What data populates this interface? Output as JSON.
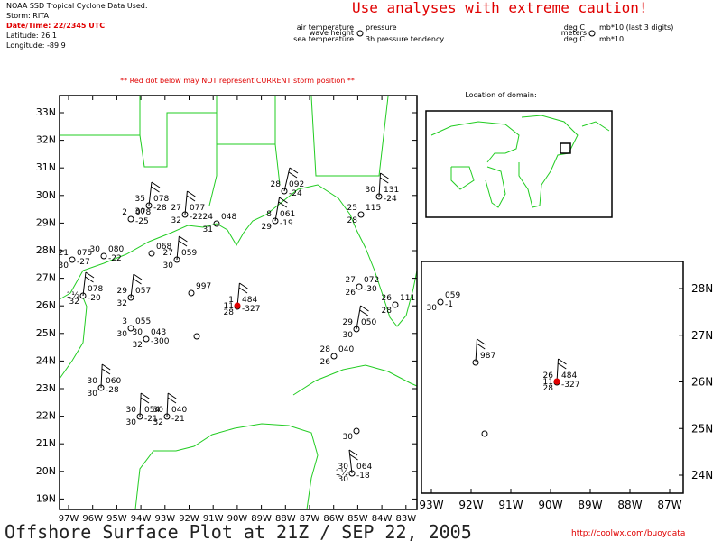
{
  "header": {
    "lines": [
      "NOAA SSD Tropical Cyclone Data Used:",
      "Storm: RITA",
      "Date/Time: 22/2345 UTC",
      "Latitude: 26.1",
      "Longitude: -89.9"
    ]
  },
  "caution": "Use analyses with extreme caution!",
  "legend": {
    "air_temperature": "air temperature",
    "pressure": "pressure",
    "wave_height": "wave height",
    "sea_temperature": "sea temperature",
    "pressure_tendency": "3h pressure tendency",
    "units_air": "deg C",
    "units_pressure": "mb*10 (last 3 digits)",
    "units_wave": "meters",
    "units_sea": "deg C",
    "units_tendency": "mb*10"
  },
  "note": "** Red dot below may NOT represent CURRENT storm position **",
  "main_map": {
    "lat_labels": [
      "33N",
      "32N",
      "31N",
      "30N",
      "29N",
      "28N",
      "27N",
      "26N",
      "25N",
      "24N",
      "23N",
      "22N",
      "21N",
      "20N",
      "19N"
    ],
    "lon_labels": [
      "97W",
      "96W",
      "95W",
      "94W",
      "93W",
      "92W",
      "91W",
      "90W",
      "89W",
      "88W",
      "87W",
      "86W",
      "85W",
      "84W",
      "83W"
    ],
    "stations": [
      {
        "air": "35",
        "press": "078",
        "sea": "30",
        "tend": "-28"
      },
      {
        "air": "2",
        "press": "078",
        "tend": "-25"
      },
      {
        "air": "27",
        "press": "077",
        "sea": "32",
        "tend": "-22"
      },
      {
        "air": "24",
        "press": "048",
        "sea": "31"
      },
      {
        "air": "28",
        "press": "092",
        "tend": "-24"
      },
      {
        "air": "8",
        "press": "061",
        "sea": "29",
        "tend": "-19"
      },
      {
        "air": "30",
        "press": "131",
        "tend": "-24"
      },
      {
        "air": "25",
        "press": "115",
        "sea": "28"
      },
      {
        "air": "30",
        "press": "080",
        "tend": "-22"
      },
      {
        "air": "21",
        "press": "075",
        "sea": "30",
        "tend": "-27"
      },
      {
        "press": "068"
      },
      {
        "air": "27",
        "press": "059",
        "sea": "30"
      },
      {
        "press": "078",
        "wave": "1½",
        "sea": "32",
        "tend": "-20"
      },
      {
        "air": "29",
        "press": "057",
        "sea": "32"
      },
      {
        "press": "997"
      },
      {
        "air": "3",
        "press": "055",
        "sea": "30"
      },
      {
        "air": "30",
        "press": "043",
        "sea": "32",
        "tend": "-300"
      },
      {
        "air": "1",
        "press": "484",
        "wave": "11",
        "sea": "28",
        "tend": "-327"
      },
      {
        "air": "29",
        "press": "050",
        "sea": "30"
      },
      {
        "air": "28",
        "press": "040",
        "sea": "26"
      },
      {
        "air": "27",
        "press": "072",
        "sea": "26",
        "tend": "-30"
      },
      {
        "air": "26",
        "press": "111",
        "sea": "28"
      },
      {
        "air": "30",
        "press": "060",
        "sea": "30",
        "tend": "-28"
      },
      {
        "air": "30",
        "press": "054",
        "sea": "30",
        "tend": "-21"
      },
      {
        "air": "30",
        "press": "040",
        "sea": "32",
        "tend": "-21"
      },
      {
        "sea": "30"
      },
      {
        "air": "30",
        "press": "064",
        "wave": "1½",
        "sea": "30",
        "tend": "-18"
      }
    ]
  },
  "inset_title": "Location of domain:",
  "zoom_map": {
    "lat_labels": [
      "28N",
      "27N",
      "26N",
      "25N",
      "24N"
    ],
    "lon_labels": [
      "93W",
      "92W",
      "91W",
      "90W",
      "89W",
      "88W",
      "87W"
    ],
    "stations": [
      {
        "sea": "30",
        "press": "059",
        "tend": "-1"
      },
      {
        "press": "987"
      },
      {
        "air": "26",
        "press": "484",
        "wave": "11",
        "sea": "28",
        "tend": "-327"
      }
    ]
  },
  "footer": {
    "title": "Offshore Surface Plot at 21Z / SEP 22, 2005",
    "url": "http://coolwx.com/buoydata"
  }
}
